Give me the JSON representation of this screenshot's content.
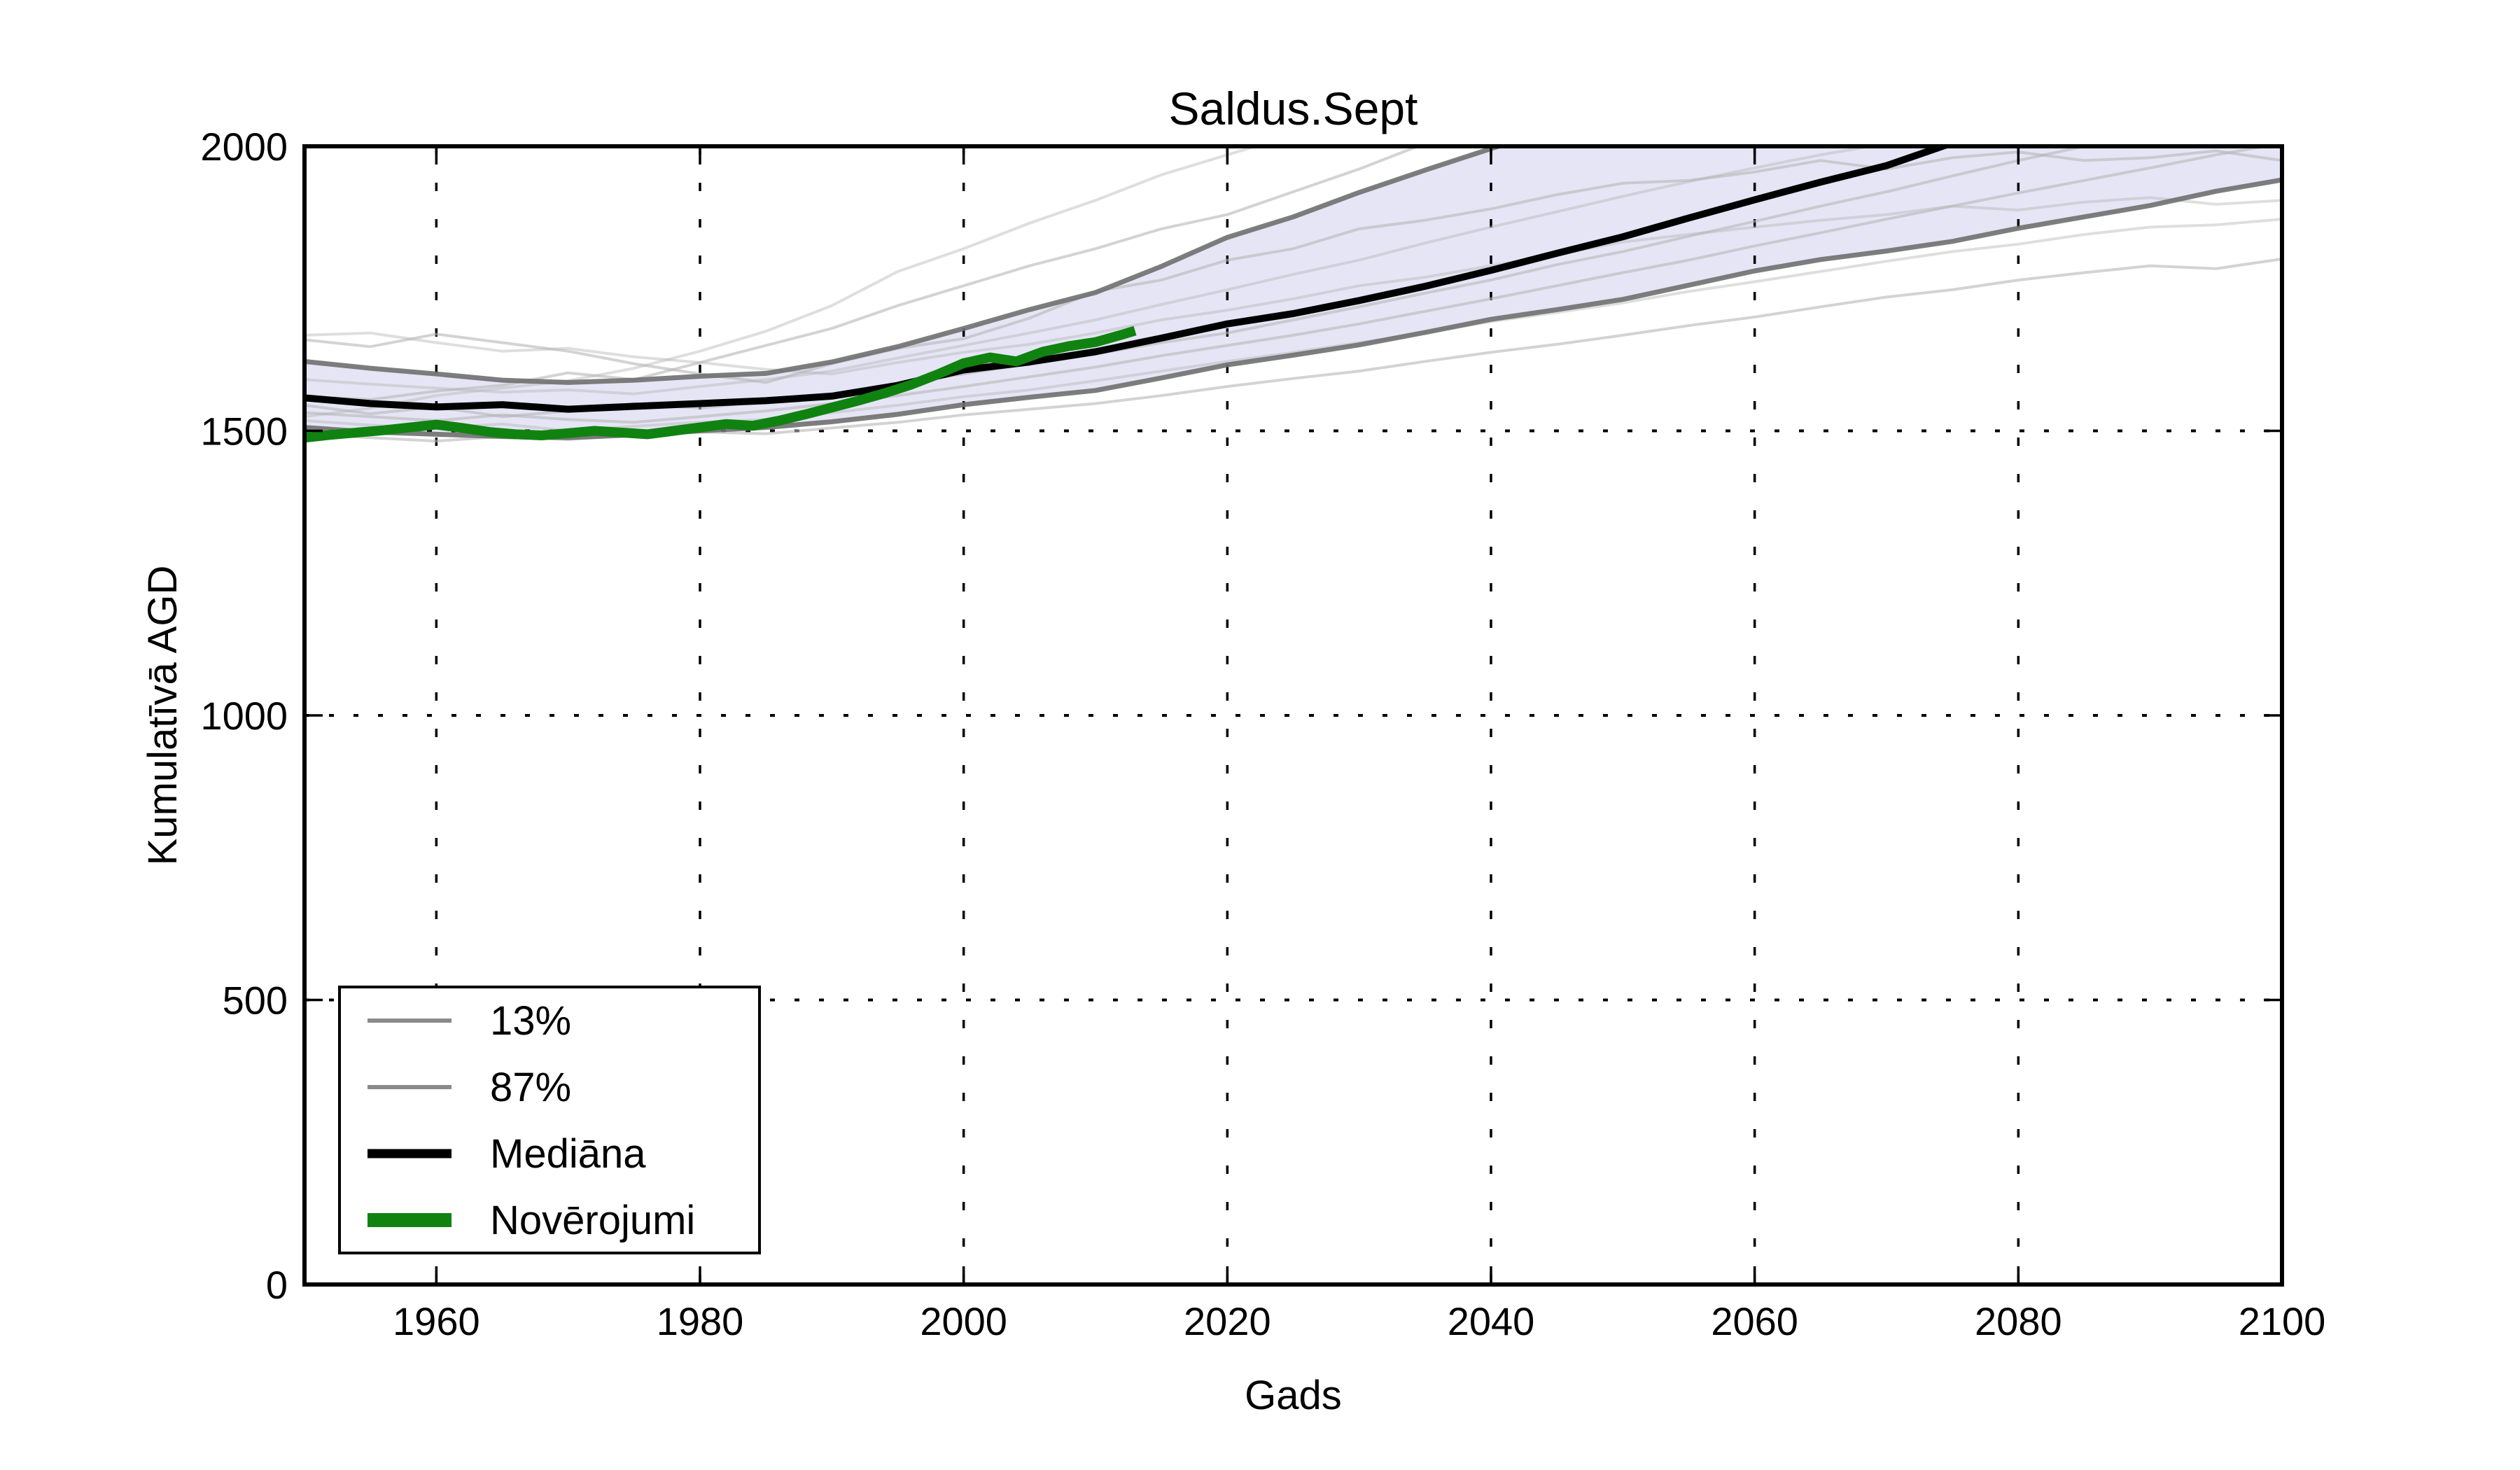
{
  "figure": {
    "title": "Saldus.Sept",
    "xlabel": "Gads",
    "ylabel": "Kumulatīvā AGD",
    "background": "#ffffff"
  },
  "legend": {
    "items": [
      {
        "label": "13%",
        "color": "#8a8a8a",
        "line_width": 6
      },
      {
        "label": "87%",
        "color": "#8a8a8a",
        "line_width": 6
      },
      {
        "label": "Mediāna",
        "color": "#000000",
        "line_width": 13
      },
      {
        "label": "Novērojumi",
        "color": "#108210",
        "line_width": 20
      }
    ]
  },
  "chart_data": {
    "type": "line",
    "title": "Saldus.Sept",
    "xlabel": "Gads",
    "ylabel": "Kumulatīvā AGD",
    "xlim": [
      1950,
      2100
    ],
    "ylim": [
      0,
      2000
    ],
    "x_ticks": [
      1960,
      1980,
      2000,
      2020,
      2040,
      2060,
      2080,
      2100
    ],
    "y_ticks": [
      0,
      500,
      1000,
      1500,
      2000
    ],
    "grid": true,
    "legend_position": "lower-left",
    "years": [
      1950,
      1955,
      1960,
      1965,
      1970,
      1975,
      1980,
      1985,
      1990,
      1995,
      2000,
      2005,
      2010,
      2015,
      2020,
      2025,
      2030,
      2035,
      2040,
      2045,
      2050,
      2055,
      2060,
      2065,
      2070,
      2075,
      2080,
      2085,
      2090,
      2095,
      2100
    ],
    "band": {
      "name_upper": "87%",
      "name_lower": "13%",
      "upper": [
        1622,
        1610,
        1600,
        1589,
        1585,
        1589,
        1596,
        1601,
        1621,
        1648,
        1680,
        1713,
        1743,
        1789,
        1840,
        1876,
        1919,
        1958,
        1996,
        2032,
        2062,
        2082,
        2105,
        2125,
        2148,
        2165,
        2180,
        2195,
        2208,
        2222,
        2235
      ],
      "lower": [
        1506,
        1498,
        1494,
        1490,
        1488,
        1493,
        1500,
        1506,
        1516,
        1529,
        1546,
        1559,
        1571,
        1593,
        1616,
        1633,
        1651,
        1673,
        1696,
        1713,
        1731,
        1756,
        1781,
        1801,
        1816,
        1833,
        1856,
        1876,
        1896,
        1921,
        1941
      ],
      "fill_color": "#dedef4",
      "edge_color": "#6f6f6f"
    },
    "median": {
      "name": "Mediāna",
      "color": "#000000",
      "values": [
        1558,
        1548,
        1542,
        1546,
        1538,
        1543,
        1548,
        1553,
        1561,
        1580,
        1607,
        1621,
        1639,
        1663,
        1688,
        1706,
        1729,
        1754,
        1782,
        1812,
        1841,
        1874,
        1906,
        1937,
        1966,
        2006,
        2028,
        2040,
        2052,
        2046,
        2058
      ]
    },
    "observations": {
      "name": "Novērojumi",
      "color": "#108210",
      "x": [
        1950,
        1952,
        1954,
        1956,
        1958,
        1960,
        1962,
        1964,
        1966,
        1968,
        1970,
        1972,
        1974,
        1976,
        1978,
        1980,
        1982,
        1984,
        1986,
        1988,
        1990,
        1992,
        1994,
        1996,
        1998,
        2000,
        2002,
        2004,
        2006,
        2008,
        2010,
        2012,
        2013
      ],
      "values": [
        1488,
        1493,
        1497,
        1501,
        1506,
        1511,
        1505,
        1498,
        1494,
        1492,
        1496,
        1500,
        1497,
        1494,
        1500,
        1506,
        1512,
        1509,
        1518,
        1529,
        1541,
        1553,
        1566,
        1581,
        1599,
        1619,
        1629,
        1622,
        1639,
        1649,
        1656,
        1669,
        1676
      ]
    },
    "ensemble": {
      "color": "#b5b5b5",
      "series": [
        {
          "values": [
            1660,
            1648,
            1670,
            1655,
            1640,
            1618,
            1600,
            1585,
            1618,
            1645,
            1662,
            1698,
            1745,
            1765,
            1800,
            1820,
            1855,
            1870,
            1890,
            1915,
            1935,
            1940,
            1955,
            1975,
            1960,
            1980,
            1990,
            1975,
            1980,
            1992,
            1975
          ]
        },
        {
          "values": [
            1668,
            1672,
            1655,
            1640,
            1645,
            1630,
            1620,
            1608,
            1600,
            1620,
            1638,
            1652,
            1672,
            1695,
            1712,
            1732,
            1755,
            1770,
            1790,
            1810,
            1832,
            1845,
            1858,
            1870,
            1880,
            1895,
            1888,
            1902,
            1910,
            1898,
            1905
          ]
        },
        {
          "values": [
            1560,
            1555,
            1570,
            1580,
            1602,
            1590,
            1620,
            1650,
            1680,
            1720,
            1755,
            1790,
            1820,
            1855,
            1880,
            1920,
            1960,
            2005,
            2040,
            2060,
            2080,
            2100,
            2115,
            2130,
            2145,
            2160,
            2175,
            2190,
            2200,
            2215,
            2225
          ]
        },
        {
          "values": [
            1525,
            1540,
            1562,
            1575,
            1588,
            1610,
            1640,
            1675,
            1720,
            1780,
            1820,
            1865,
            1905,
            1950,
            1985,
            2020,
            2045,
            2070,
            2090,
            2110,
            2130,
            2150,
            2165,
            2180,
            2195,
            2210,
            2220,
            2235,
            2245,
            2255,
            2265
          ]
        },
        {
          "values": [
            1545,
            1530,
            1542,
            1525,
            1535,
            1548,
            1540,
            1552,
            1565,
            1582,
            1600,
            1618,
            1635,
            1655,
            1672,
            1695,
            1718,
            1742,
            1765,
            1792,
            1815,
            1842,
            1868,
            1895,
            1920,
            1948,
            1975,
            2000,
            2025,
            2040,
            2060
          ]
        },
        {
          "values": [
            1518,
            1510,
            1505,
            1512,
            1500,
            1508,
            1515,
            1520,
            1532,
            1545,
            1560,
            1572,
            1588,
            1605,
            1622,
            1638,
            1655,
            1672,
            1692,
            1708,
            1725,
            1745,
            1762,
            1780,
            1798,
            1815,
            1828,
            1845,
            1858,
            1862,
            1872
          ]
        },
        {
          "values": [
            1495,
            1488,
            1482,
            1490,
            1485,
            1492,
            1498,
            1495,
            1505,
            1515,
            1528,
            1538,
            1548,
            1562,
            1578,
            1592,
            1605,
            1622,
            1638,
            1652,
            1668,
            1685,
            1700,
            1718,
            1735,
            1748,
            1765,
            1778,
            1790,
            1785,
            1802
          ]
        },
        {
          "values": [
            1590,
            1582,
            1575,
            1568,
            1572,
            1565,
            1578,
            1590,
            1605,
            1628,
            1650,
            1672,
            1695,
            1722,
            1748,
            1775,
            1800,
            1830,
            1858,
            1885,
            1912,
            1938,
            1962,
            1985,
            2005,
            2020,
            2035,
            2050,
            2062,
            2075,
            2080
          ]
        },
        {
          "values": [
            1532,
            1525,
            1518,
            1528,
            1520,
            1515,
            1525,
            1535,
            1548,
            1562,
            1578,
            1595,
            1612,
            1632,
            1650,
            1668,
            1688,
            1710,
            1732,
            1755,
            1778,
            1800,
            1825,
            1848,
            1872,
            1895,
            1918,
            1940,
            1962,
            1985,
            2005
          ]
        }
      ]
    }
  }
}
